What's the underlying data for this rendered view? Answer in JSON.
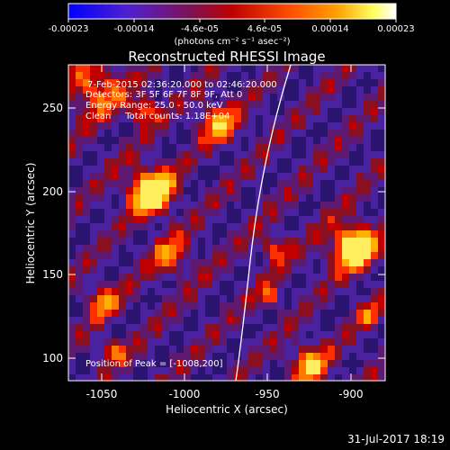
{
  "colorbar": {
    "ticks": [
      "-0.00023",
      "-0.00014",
      "-4.6e-05",
      "4.6e-05",
      "0.00014",
      "0.00023"
    ],
    "units_label": "(photons cm⁻² s⁻¹ asec⁻²)",
    "colors": [
      "#0000ff",
      "#6020c0",
      "#802040",
      "#c00000",
      "#ff5000",
      "#ffa000",
      "#ffff80",
      "#ffffff"
    ]
  },
  "title": "Reconstructed RHESSI Image",
  "annotations": {
    "time_range": "7-Feb-2015 02:36:20.000 to 02:46:20.000",
    "detectors": "Detectors: 3F 5F 6F 7F 8F 9F, Att 0",
    "energy_range": "Energy Range: 25.0 - 50.0 keV",
    "algorithm_counts": "Clean     Total counts: 1.18E+04",
    "peak_position": "Position of Peak = [-1008,200]"
  },
  "axes": {
    "x_label": "Heliocentric X (arcsec)",
    "y_label": "Heliocentric Y (arcsec)",
    "x_ticks": [
      "-1050",
      "-1000",
      "-950",
      "-900"
    ],
    "y_ticks": [
      "100",
      "150",
      "200",
      "250"
    ],
    "x_range": [
      -1070,
      -880
    ],
    "y_range": [
      87,
      275
    ]
  },
  "footer_date": "31-Jul-2017 18:19"
}
